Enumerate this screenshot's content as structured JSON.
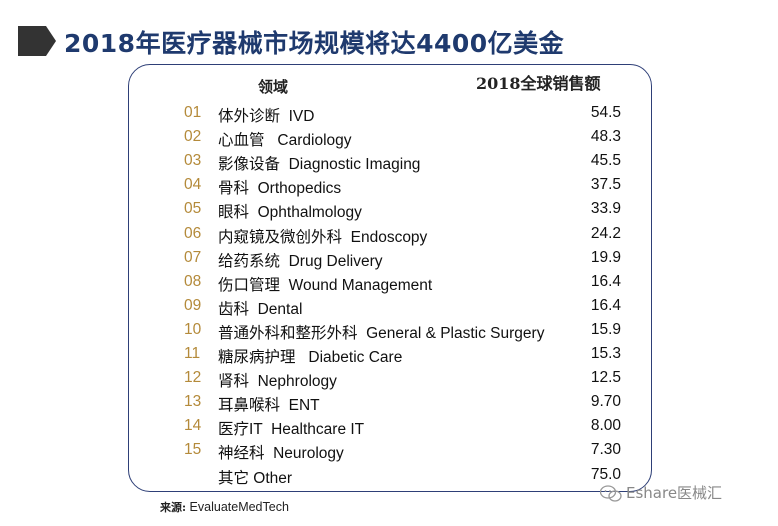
{
  "title": "2018年医疗器械市场规模将达4400亿美金",
  "table": {
    "header_field": "领域",
    "header_sales": "2018全球销售额",
    "rows": [
      {
        "num": "01",
        "name": "体外诊断  IVD",
        "value": "54.5"
      },
      {
        "num": "02",
        "name": "心血管   Cardiology",
        "value": "48.3"
      },
      {
        "num": "03",
        "name": "影像设备  Diagnostic Imaging",
        "value": "45.5"
      },
      {
        "num": "04",
        "name": "骨科  Orthopedics",
        "value": "37.5"
      },
      {
        "num": "05",
        "name": "眼科  Ophthalmology",
        "value": "33.9"
      },
      {
        "num": "06",
        "name": "内窥镜及微创外科  Endoscopy",
        "value": "24.2"
      },
      {
        "num": "07",
        "name": "给药系统  Drug Delivery",
        "value": "19.9"
      },
      {
        "num": "08",
        "name": "伤口管理  Wound Management",
        "value": "16.4"
      },
      {
        "num": "09",
        "name": "齿科  Dental",
        "value": "16.4"
      },
      {
        "num": "10",
        "name": "普通外科和整形外科  General & Plastic Surgery",
        "value": "15.9"
      },
      {
        "num": "11",
        "name": "糖尿病护理   Diabetic Care",
        "value": "15.3"
      },
      {
        "num": "12",
        "name": "肾科  Nephrology",
        "value": "12.5"
      },
      {
        "num": "13",
        "name": "耳鼻喉科  ENT",
        "value": "9.70"
      },
      {
        "num": "14",
        "name": "医疗IT  Healthcare IT",
        "value": "8.00"
      },
      {
        "num": "15",
        "name": "神经科  Neurology",
        "value": "7.30"
      },
      {
        "num": "",
        "name": "其它 Other",
        "value": "75.0"
      }
    ]
  },
  "source": {
    "prefix": "来源:",
    "text": "EvaluateMedTech"
  },
  "watermark": {
    "text": "Eshare医械汇",
    "icon": "wechat-icon"
  },
  "colors": {
    "title": "#1f3a6e",
    "number": "#b48a3a",
    "panel_border": "#2e3f77",
    "chevron": "#333333"
  }
}
